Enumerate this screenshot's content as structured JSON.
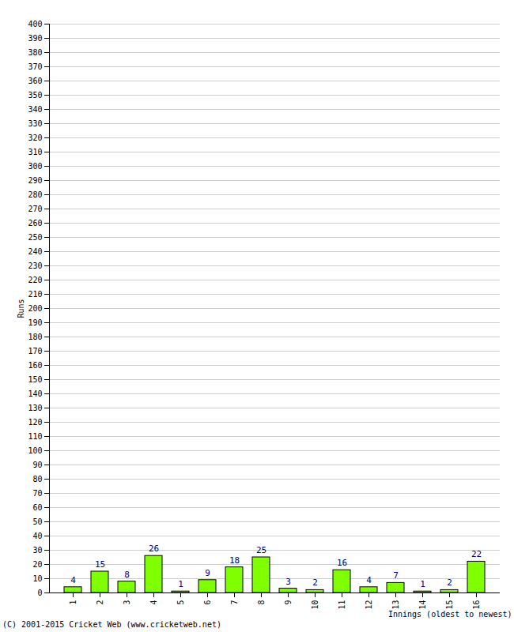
{
  "chart_data": {
    "type": "bar",
    "categories": [
      "1",
      "2",
      "3",
      "4",
      "5",
      "6",
      "7",
      "8",
      "9",
      "10",
      "11",
      "12",
      "13",
      "14",
      "15",
      "16"
    ],
    "values": [
      4,
      15,
      8,
      26,
      1,
      9,
      18,
      25,
      3,
      2,
      16,
      4,
      7,
      1,
      2,
      22
    ],
    "color": "#80ff00",
    "x_label": "Innings (oldest to newest)",
    "y_label": "Runs",
    "caption": "(C) 2001-2015 Cricket Web (www.cricketweb.net)",
    "ylim": [
      0,
      400
    ],
    "yticks": [
      0,
      10,
      20,
      30,
      40,
      50,
      60,
      70,
      80,
      90,
      100,
      110,
      120,
      130,
      140,
      150,
      160,
      170,
      180,
      190,
      200,
      210,
      220,
      230,
      240,
      250,
      260,
      270,
      280,
      290,
      300,
      310,
      320,
      330,
      340,
      350,
      360,
      370,
      380,
      390,
      400
    ],
    "grid": true,
    "data_labels": true
  }
}
